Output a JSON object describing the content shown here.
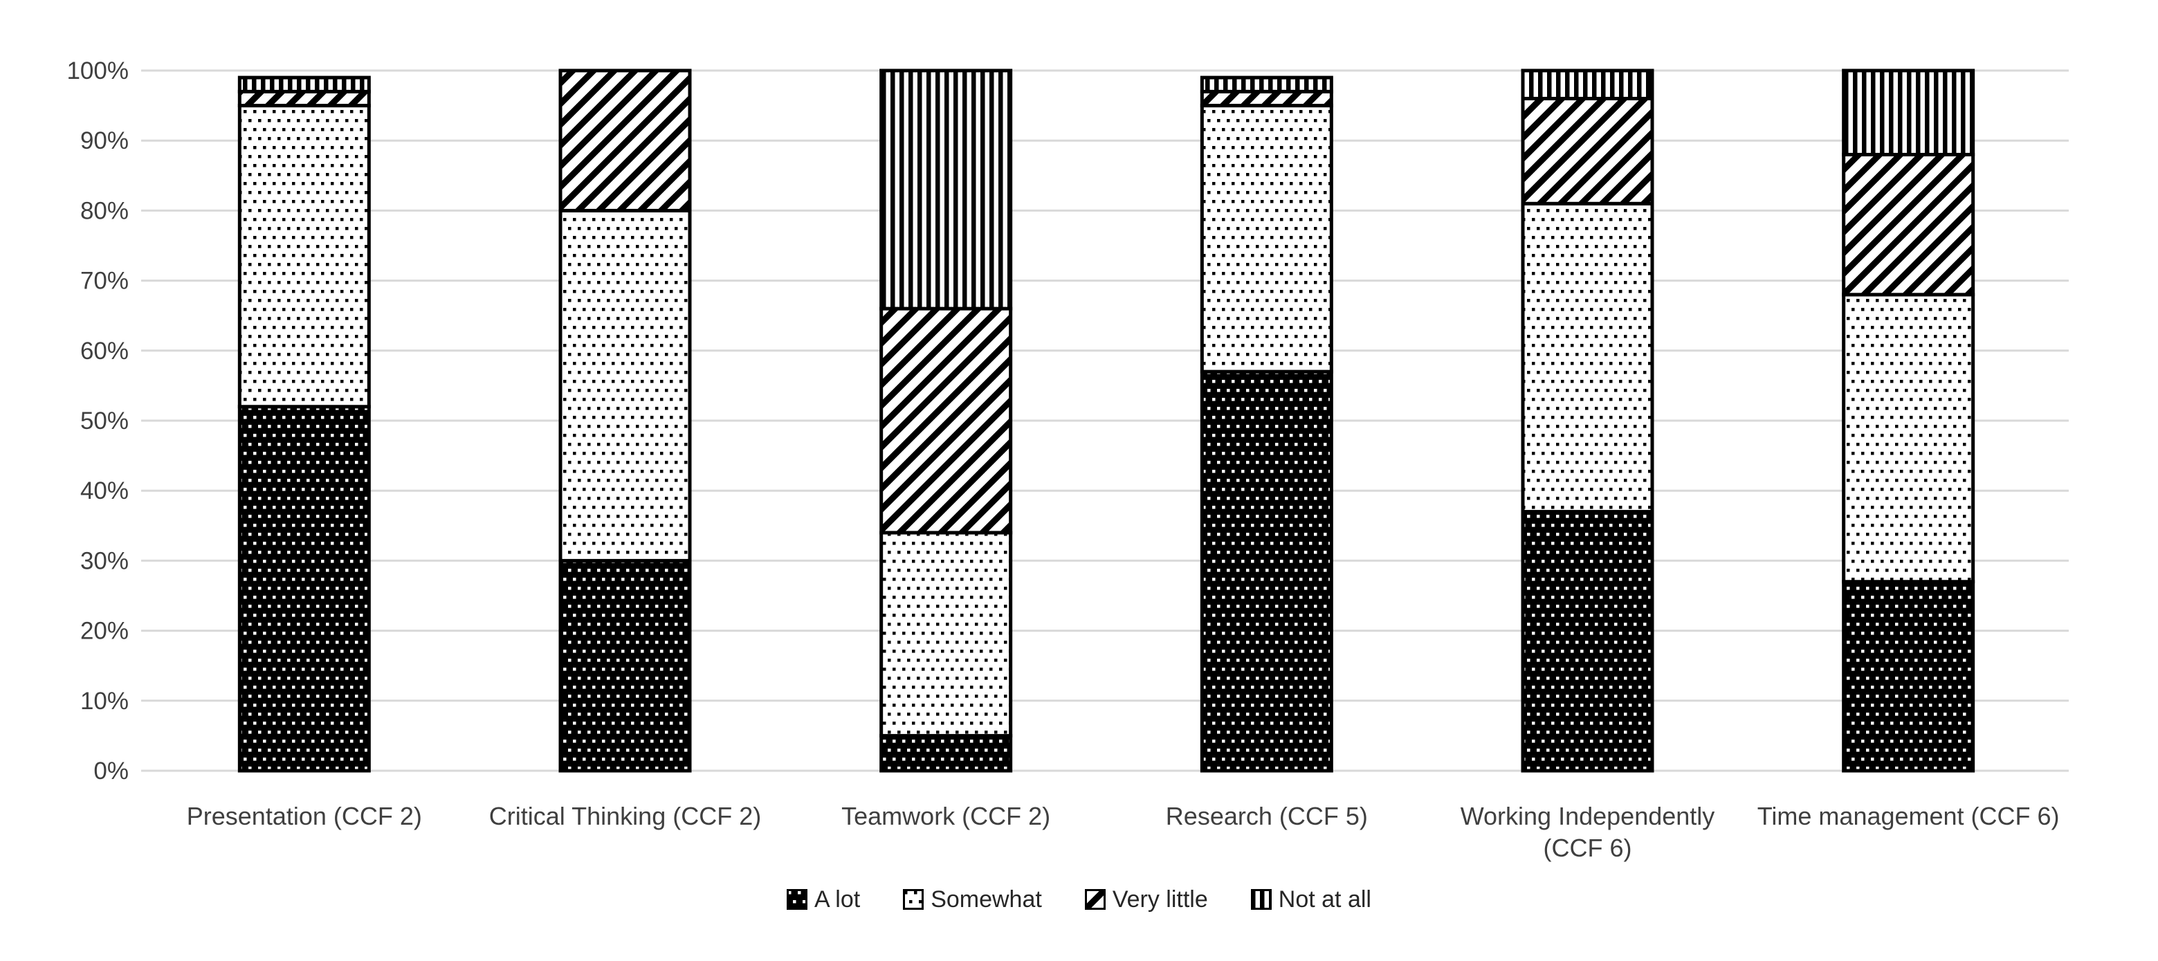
{
  "chart_data": {
    "type": "bar",
    "subtype": "stacked-percentage-column",
    "title": "",
    "xlabel": "",
    "ylabel": "",
    "grid": true,
    "categories": [
      {
        "label": "Presentation (CCF 2)",
        "lines": [
          "Presentation (CCF 2)"
        ]
      },
      {
        "label": "Critical Thinking (CCF 2)",
        "lines": [
          "Critical Thinking (CCF 2)"
        ]
      },
      {
        "label": "Teamwork (CCF 2)",
        "lines": [
          "Teamwork (CCF 2)"
        ]
      },
      {
        "label": "Research (CCF 5)",
        "lines": [
          "Research (CCF 5)"
        ]
      },
      {
        "label": "Working Independently (CCF 6)",
        "lines": [
          "Working Independently",
          "(CCF 6)"
        ]
      },
      {
        "label": "Time management (CCF 6)",
        "lines": [
          "Time management (CCF 6)"
        ]
      }
    ],
    "series": [
      {
        "name": "A lot",
        "pattern": "black-white-dots",
        "values": [
          52,
          30,
          5,
          57,
          37,
          27
        ]
      },
      {
        "name": "Somewhat",
        "pattern": "white-black-dots",
        "values": [
          43,
          50,
          29,
          38,
          44,
          41
        ]
      },
      {
        "name": "Very little",
        "pattern": "diagonal-hatch",
        "values": [
          2,
          20,
          32,
          2,
          15,
          20
        ]
      },
      {
        "name": "Not at all",
        "pattern": "vertical-stripes",
        "values": [
          2,
          0,
          34,
          2,
          4,
          12
        ]
      }
    ],
    "y_axis": {
      "min": 0,
      "max": 100,
      "step": 10,
      "ticks": [
        "0%",
        "10%",
        "20%",
        "30%",
        "40%",
        "50%",
        "60%",
        "70%",
        "80%",
        "90%",
        "100%"
      ]
    },
    "legend": {
      "position": "bottom",
      "items": [
        "A lot",
        "Somewhat",
        "Very little",
        "Not at all"
      ]
    },
    "colors": {
      "pattern_foreground": "#000000",
      "background": "#ffffff",
      "gridline": "#d9d9d9",
      "axis_text": "#3f3f3f"
    }
  }
}
